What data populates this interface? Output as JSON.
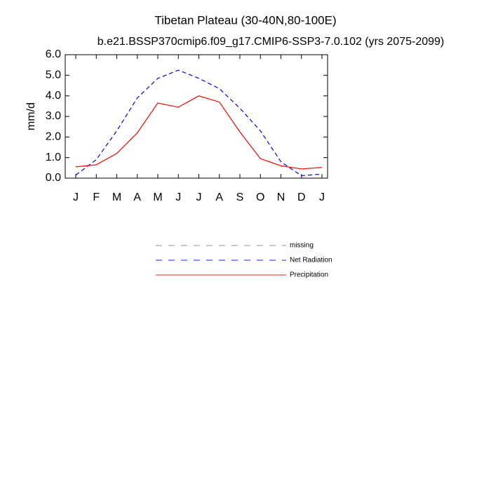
{
  "chart_data": {
    "type": "line",
    "title": "Tibetan Plateau (30-40N,80-100E)",
    "subtitle": "b.e21.BSSP370cmip6.f09_g17.CMIP6-SSP3-7.0.102 (yrs 2075-2099)",
    "y_label": "mm/d",
    "categories": [
      "J",
      "F",
      "M",
      "A",
      "M",
      "J",
      "J",
      "A",
      "S",
      "O",
      "N",
      "D",
      "J"
    ],
    "series": [
      {
        "name": "missing",
        "color": "#888888",
        "dash": true,
        "values": [
          null,
          null,
          null,
          null,
          null,
          null,
          null,
          null,
          null,
          null,
          null,
          null,
          null
        ]
      },
      {
        "name": "Net Radiation",
        "color": "#0000ff",
        "dash": true,
        "values": [
          0.15,
          0.9,
          2.3,
          3.9,
          4.85,
          5.25,
          4.85,
          4.35,
          3.4,
          2.3,
          0.8,
          0.12,
          0.2
        ]
      },
      {
        "name": "Precipitation",
        "color": "#ff0000",
        "dash": false,
        "values": [
          0.55,
          0.65,
          1.2,
          2.2,
          3.65,
          3.45,
          4.0,
          3.7,
          2.25,
          0.95,
          0.6,
          0.45,
          0.52
        ]
      }
    ],
    "ylim": [
      0,
      6
    ],
    "yticks": [
      {
        "value": 0,
        "label": "0.0"
      },
      {
        "value": 1,
        "label": "1.0"
      },
      {
        "value": 2,
        "label": "2.0"
      },
      {
        "value": 3,
        "label": "3.0"
      },
      {
        "value": 4,
        "label": "4.0"
      },
      {
        "value": 5,
        "label": "5.0"
      },
      {
        "value": 6,
        "label": "6.0"
      }
    ]
  }
}
